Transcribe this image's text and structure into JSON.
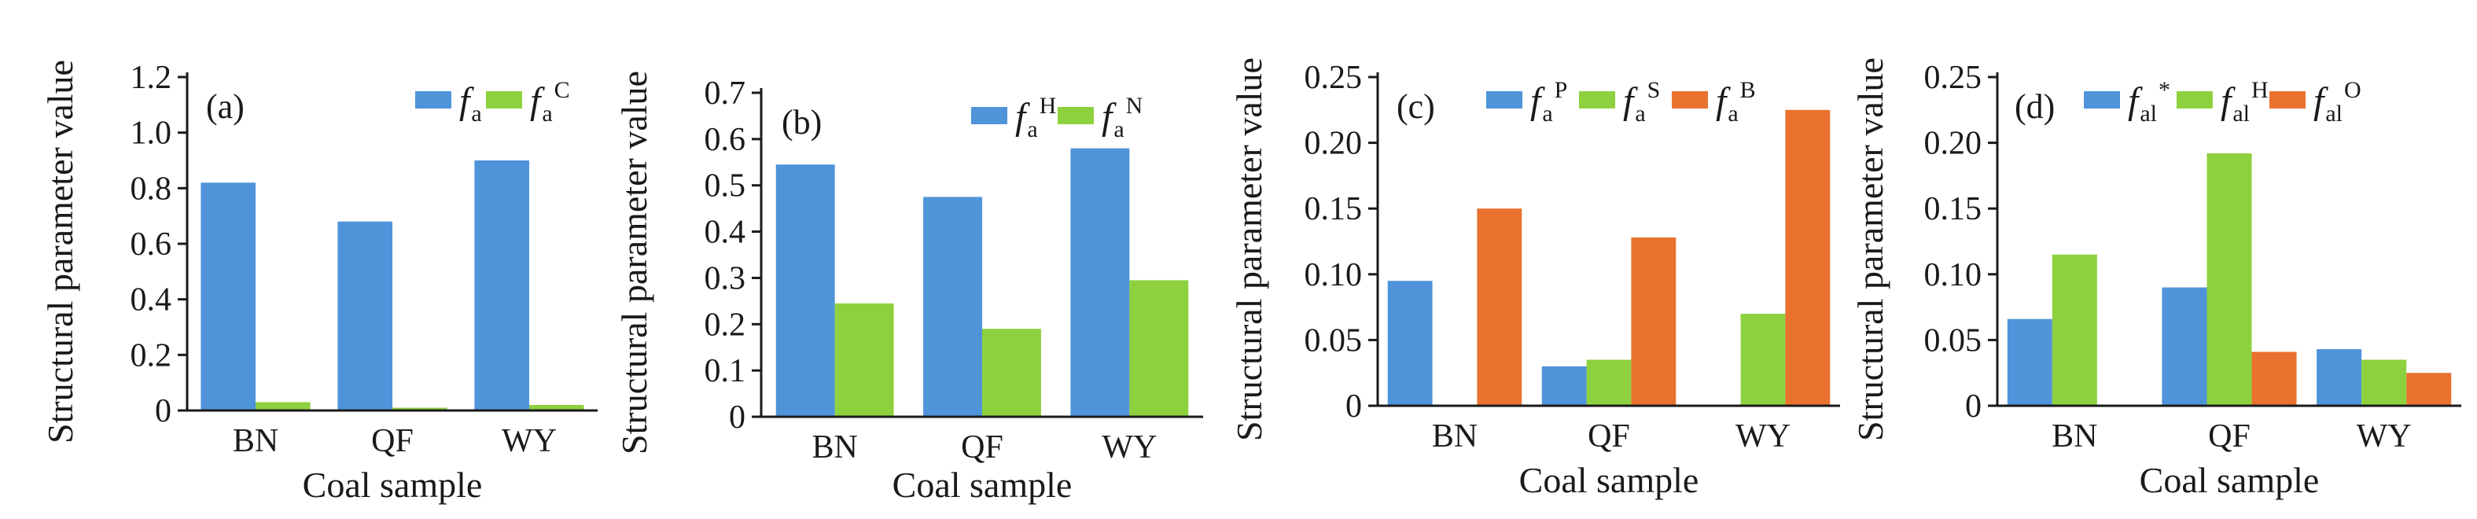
{
  "colors": {
    "blue": "#4f94d9",
    "green": "#8ed13f",
    "orange": "#e9722e",
    "axis": "#1a1a1a"
  },
  "chart_data": [
    {
      "type": "bar",
      "panel_label": "(a)",
      "categories": [
        "BN",
        "QF",
        "WY"
      ],
      "xlabel": "Coal sample",
      "ylabel": "Structural parameter value",
      "ylim": [
        0,
        1.2
      ],
      "yticks": [
        "0",
        "0.2",
        "0.4",
        "0.6",
        "0.8",
        "1.0",
        "1.2"
      ],
      "legend_position": "top-right",
      "series": [
        {
          "base": "f",
          "sub": "a",
          "sup": "",
          "color": "blue",
          "values": [
            0.82,
            0.68,
            0.9
          ]
        },
        {
          "base": "f",
          "sub": "a",
          "sup": "C",
          "color": "green",
          "values": [
            0.03,
            0.01,
            0.02
          ]
        }
      ]
    },
    {
      "type": "bar",
      "panel_label": "(b)",
      "categories": [
        "BN",
        "QF",
        "WY"
      ],
      "xlabel": "Coal sample",
      "ylabel": "Structural parameter value",
      "ylim": [
        0,
        0.7
      ],
      "yticks": [
        "0",
        "0.1",
        "0.2",
        "0.3",
        "0.4",
        "0.5",
        "0.6",
        "0.7"
      ],
      "legend_position": "top-right",
      "series": [
        {
          "base": "f",
          "sub": "a",
          "sup": "H",
          "color": "blue",
          "values": [
            0.545,
            0.475,
            0.58
          ]
        },
        {
          "base": "f",
          "sub": "a",
          "sup": "N",
          "color": "green",
          "values": [
            0.245,
            0.19,
            0.295
          ]
        }
      ]
    },
    {
      "type": "bar",
      "panel_label": "(c)",
      "categories": [
        "BN",
        "QF",
        "WY"
      ],
      "xlabel": "Coal sample",
      "ylabel": "Structural parameter value",
      "ylim": [
        0,
        0.25
      ],
      "yticks": [
        "0",
        "0.05",
        "0.10",
        "0.15",
        "0.20",
        "0.25"
      ],
      "legend_position": "top",
      "series": [
        {
          "base": "f",
          "sub": "a",
          "sup": "P",
          "color": "blue",
          "values": [
            0.095,
            0.03,
            0.0
          ]
        },
        {
          "base": "f",
          "sub": "a",
          "sup": "S",
          "color": "green",
          "values": [
            0.0,
            0.035,
            0.07
          ]
        },
        {
          "base": "f",
          "sub": "a",
          "sup": "B",
          "color": "orange",
          "values": [
            0.15,
            0.128,
            0.225
          ]
        }
      ]
    },
    {
      "type": "bar",
      "panel_label": "(d)",
      "categories": [
        "BN",
        "QF",
        "WY"
      ],
      "xlabel": "Coal sample",
      "ylabel": "Structural parameter value",
      "ylim": [
        0,
        0.25
      ],
      "yticks": [
        "0",
        "0.05",
        "0.10",
        "0.15",
        "0.20",
        "0.25"
      ],
      "legend_position": "top",
      "series": [
        {
          "base": "f",
          "sub": "al",
          "sup": "*",
          "color": "blue",
          "values": [
            0.066,
            0.09,
            0.043
          ]
        },
        {
          "base": "f",
          "sub": "al",
          "sup": "H",
          "color": "green",
          "values": [
            0.115,
            0.192,
            0.035
          ]
        },
        {
          "base": "f",
          "sub": "al",
          "sup": "O",
          "color": "orange",
          "values": [
            0.0,
            0.041,
            0.025
          ]
        }
      ]
    }
  ]
}
